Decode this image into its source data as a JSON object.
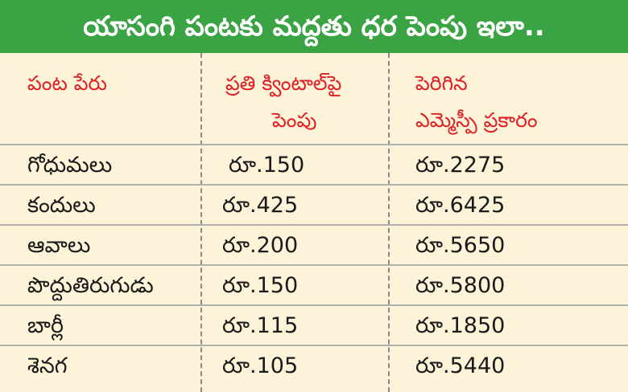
{
  "title": "యాసంగి పంటకు మద్దతు ధర పెంపు ఇలా..",
  "columns": {
    "crop": "పంట పేరు",
    "increase_line1": "ప్రతి క్వింటాల్‌పై",
    "increase_line2": "పెంపు",
    "msp_line1": "పెరిగిన",
    "msp_line2": "ఎమ్మెస్పీ ప్రకారం"
  },
  "rows": [
    {
      "crop": "గోధుమలు",
      "increase": "రూ.150",
      "msp": "రూ.2275"
    },
    {
      "crop": "కందులు",
      "increase": "రూ.425",
      "msp": "రూ.6425"
    },
    {
      "crop": "ఆవాలు",
      "increase": "రూ.200",
      "msp": "రూ.5650"
    },
    {
      "crop": "పొద్దుతిరుగుడు",
      "increase": "రూ.150",
      "msp": "రూ.5800"
    },
    {
      "crop": "బార్లీ",
      "increase": "రూ.115",
      "msp": "రూ.1850"
    },
    {
      "crop": "శెనగ",
      "increase": "రూ.105",
      "msp": "రూ.5440"
    }
  ],
  "colors": {
    "banner": "#3aa344",
    "header_text": "#e01e24",
    "background": "#fdf3d8"
  }
}
